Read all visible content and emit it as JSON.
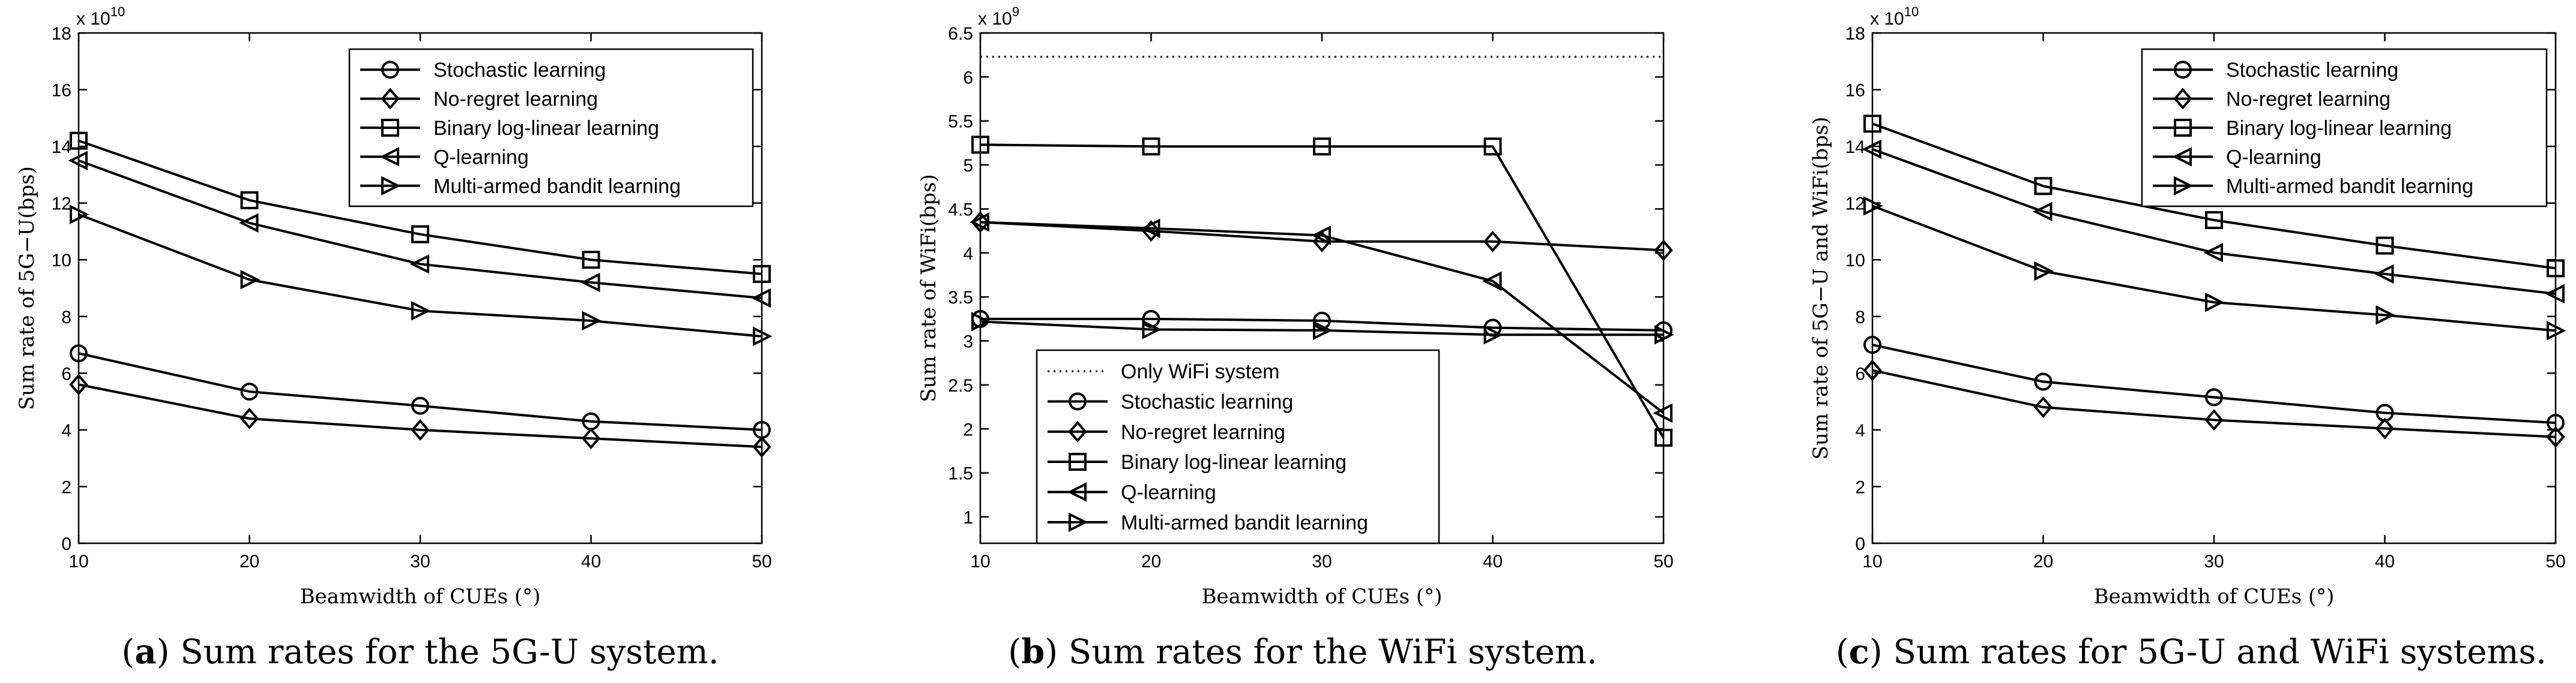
{
  "chart_data": [
    {
      "type": "line",
      "panel": "a",
      "caption_label": "a",
      "caption_text": " Sum rates for the 5G-U system.",
      "xlabel": "Beamwidth of CUEs (°)",
      "ylabel": "Sum rate of 5G−U(bps)",
      "exponent": "x 10",
      "exponent_power": "10",
      "x": [
        10,
        20,
        30,
        40,
        50
      ],
      "xticks": [
        "10",
        "20",
        "30",
        "40",
        "50"
      ],
      "xlim": [
        10,
        50
      ],
      "ylim": [
        0,
        18
      ],
      "yticks": [
        "0",
        "2",
        "4",
        "6",
        "8",
        "10",
        "12",
        "14",
        "16",
        "18"
      ],
      "legend_position": "top-right",
      "series": [
        {
          "name": "Stochastic learning",
          "marker": "circle",
          "values": [
            6.7,
            5.35,
            4.85,
            4.3,
            4.0
          ]
        },
        {
          "name": "No-regret learning",
          "marker": "diamond",
          "values": [
            5.6,
            4.4,
            4.0,
            3.7,
            3.4
          ]
        },
        {
          "name": "Binary log-linear learning",
          "marker": "square",
          "values": [
            14.2,
            12.1,
            10.9,
            10.0,
            9.5
          ]
        },
        {
          "name": "Q-learning",
          "marker": "triangle-left",
          "values": [
            13.5,
            11.3,
            9.85,
            9.2,
            8.65
          ]
        },
        {
          "name": "Multi-armed bandit learning",
          "marker": "triangle-right",
          "values": [
            11.6,
            9.3,
            8.2,
            7.85,
            7.3
          ]
        }
      ]
    },
    {
      "type": "line",
      "panel": "b",
      "caption_label": "b",
      "caption_text": " Sum rates for the WiFi system.",
      "xlabel": "Beamwidth of CUEs (°)",
      "ylabel": "Sum rate of WiFi(bps)",
      "exponent": "x 10",
      "exponent_power": "9",
      "x": [
        10,
        20,
        30,
        40,
        50
      ],
      "xticks": [
        "10",
        "20",
        "30",
        "40",
        "50"
      ],
      "xlim": [
        10,
        50
      ],
      "ylim": [
        0.7,
        6.5
      ],
      "yticks": [
        "1",
        "1.5",
        "2",
        "2.5",
        "3",
        "3.5",
        "4",
        "4.5",
        "5",
        "5.5",
        "6",
        "6.5"
      ],
      "legend_position": "lower-left",
      "series": [
        {
          "name": "Only WiFi system",
          "marker": "none",
          "dotted": true,
          "values": [
            6.23,
            6.23,
            6.23,
            6.23,
            6.23
          ]
        },
        {
          "name": "Stochastic learning",
          "marker": "circle",
          "values": [
            3.25,
            3.25,
            3.23,
            3.15,
            3.12
          ]
        },
        {
          "name": "No-regret learning",
          "marker": "diamond",
          "values": [
            4.35,
            4.25,
            4.13,
            4.13,
            4.03
          ]
        },
        {
          "name": "Binary log-linear learning",
          "marker": "square",
          "values": [
            5.23,
            5.21,
            5.21,
            5.21,
            1.9
          ]
        },
        {
          "name": "Q-learning",
          "marker": "triangle-left",
          "values": [
            4.35,
            4.28,
            4.2,
            3.68,
            2.18
          ]
        },
        {
          "name": "Multi-armed bandit learning",
          "marker": "triangle-right",
          "values": [
            3.22,
            3.13,
            3.12,
            3.07,
            3.07
          ]
        }
      ]
    },
    {
      "type": "line",
      "panel": "c",
      "caption_label": "c",
      "caption_text": " Sum rates for 5G-U and WiFi systems.",
      "xlabel": "Beamwidth of CUEs (°)",
      "ylabel": "Sum rate of 5G−U and WiFi(bps)",
      "exponent": "x 10",
      "exponent_power": "10",
      "x": [
        10,
        20,
        30,
        40,
        50
      ],
      "xticks": [
        "10",
        "20",
        "30",
        "40",
        "50"
      ],
      "xlim": [
        10,
        50
      ],
      "ylim": [
        0,
        18
      ],
      "yticks": [
        "0",
        "2",
        "4",
        "6",
        "8",
        "10",
        "12",
        "14",
        "16",
        "18"
      ],
      "legend_position": "top-right",
      "series": [
        {
          "name": "Stochastic learning",
          "marker": "circle",
          "values": [
            7.0,
            5.7,
            5.15,
            4.6,
            4.25
          ]
        },
        {
          "name": "No-regret learning",
          "marker": "diamond",
          "values": [
            6.1,
            4.8,
            4.35,
            4.05,
            3.75
          ]
        },
        {
          "name": "Binary log-linear learning",
          "marker": "square",
          "values": [
            14.8,
            12.6,
            11.4,
            10.5,
            9.7
          ]
        },
        {
          "name": "Q-learning",
          "marker": "triangle-left",
          "values": [
            13.9,
            11.7,
            10.25,
            9.5,
            8.8
          ]
        },
        {
          "name": "Multi-armed bandit learning",
          "marker": "triangle-right",
          "values": [
            11.9,
            9.6,
            8.5,
            8.05,
            7.5
          ]
        }
      ]
    }
  ]
}
